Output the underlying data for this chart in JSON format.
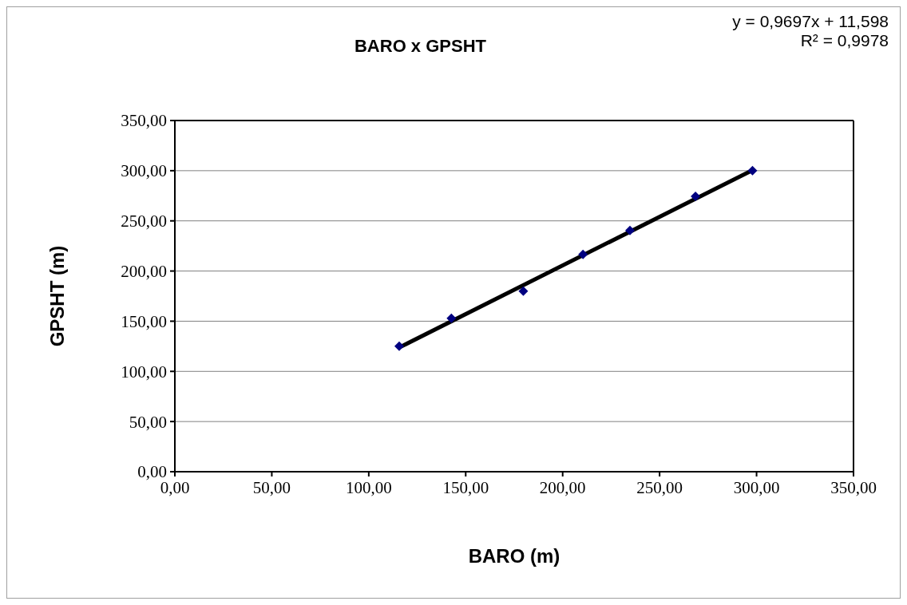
{
  "chart_data": {
    "type": "scatter",
    "title": "BARO x GPSHT",
    "xlabel": "BARO (m)",
    "ylabel": "GPSHT (m)",
    "annotations": [
      "y = 0,9697x + 11,598",
      "R² = 0,9978"
    ],
    "series": [
      {
        "color": "#000080",
        "marker": "diamond",
        "x": [
          115.7,
          142.6,
          179.7,
          210.5,
          234.7,
          268.5,
          297.9
        ],
        "values": [
          125,
          153,
          180,
          216.5,
          240.4,
          274.5,
          300
        ]
      },
      {
        "type": "line",
        "color": "#000000",
        "marker": "none",
        "line_style": "solid",
        "x": [
          115.7,
          297.9
        ],
        "values": [
          123.8,
          300.5
        ]
      }
    ],
    "xlim": [
      0,
      350
    ],
    "ylim": [
      0,
      350
    ],
    "xticks": [
      {
        "value": 0,
        "label": "0,00"
      },
      {
        "value": 50,
        "label": "50,00"
      },
      {
        "value": 100,
        "label": "100,00"
      },
      {
        "value": 150,
        "label": "150,00"
      },
      {
        "value": 200,
        "label": "200,00"
      },
      {
        "value": 250,
        "label": "250,00"
      },
      {
        "value": 300,
        "label": "300,00"
      },
      {
        "value": 350,
        "label": "350,00"
      }
    ],
    "yticks": [
      {
        "value": 0,
        "label": "0,00"
      },
      {
        "value": 50,
        "label": "50,00"
      },
      {
        "value": 100,
        "label": "100,00"
      },
      {
        "value": 150,
        "label": "150,00"
      },
      {
        "value": 200,
        "label": "200,00"
      },
      {
        "value": 250,
        "label": "250,00"
      },
      {
        "value": 300,
        "label": "300,00"
      },
      {
        "value": 350,
        "label": "350,00"
      }
    ],
    "grid": "y",
    "legend": false
  }
}
